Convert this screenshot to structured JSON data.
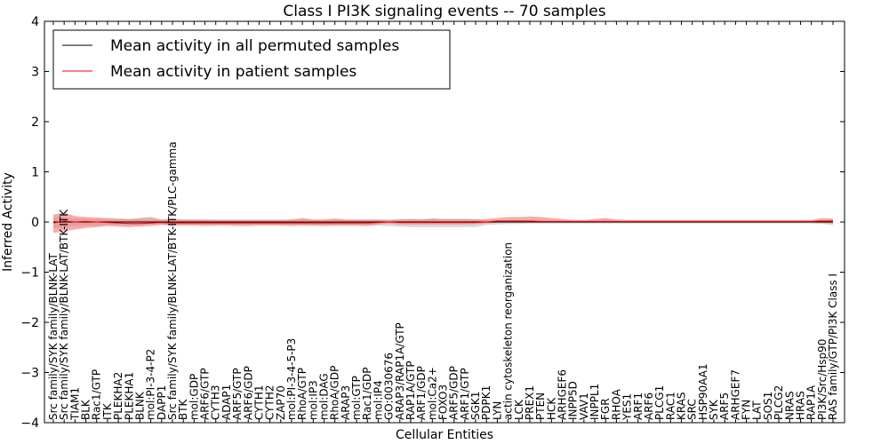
{
  "chart_data": {
    "type": "line",
    "title": "Class I PI3K signaling events -- 70 samples",
    "xlabel": "Cellular Entities",
    "ylabel": "Inferred Activity",
    "ylim": [
      -4,
      4
    ],
    "yticks": [
      -4,
      -3,
      -2,
      -1,
      0,
      1,
      2,
      3,
      4
    ],
    "grid": false,
    "legend_position": "top-left",
    "colors": {
      "permuted": "#000000",
      "patient": "#ff0000",
      "patient_band": "#f08080",
      "permuted_band": "#c8c8c8"
    },
    "categories": [
      "Src family/SYK family/BLNK-LAT",
      "Src family/SYK family/BLNK-LAT/BTK-ITK",
      "TIAM1",
      "BLK",
      "Rac1/GTP",
      "ITK",
      "PLEKHA2",
      "PLEKHA1",
      "BLNK",
      "mol:PI-3-4-P2",
      "DAPP1",
      "Src family/SYK family/BLNK-LAT/BTK-ITK/PLC-gamma",
      "BTK",
      "mol:GDP",
      "ARF6/GTP",
      "CYTH3",
      "ADAP1",
      "ARF5/GTP",
      "ARF6/GDP",
      "CYTH1",
      "CYTH2",
      "ZAP70",
      "mol:PI-3-4-5-P3",
      "RhoA/GTP",
      "mol:IP3",
      "mol:DAG",
      "RhoA/GDP",
      "ARAP3",
      "mol:GTP",
      "Rac1/GDP",
      "mol:IP4",
      "GO:0030676",
      "ARAP3/RAP1A/GTP",
      "RAP1A/GTP",
      "ARF1/GDP",
      "mol:Ca2+",
      "FOXO3",
      "ARF5/GDP",
      "ARF1/GTP",
      "SGK1",
      "PDPK1",
      "LYN",
      "actin cytoskeleton reorganization",
      "LCK",
      "PREX1",
      "PTEN",
      "HCK",
      "ARHGEF6",
      "INPP5D",
      "VAV1",
      "INPPL1",
      "FGR",
      "RHOA",
      "YES1",
      "ARF1",
      "ARF6",
      "PLCG1",
      "RAC1",
      "KRAS",
      "SRC",
      "HSP90AA1",
      "SYK",
      "ARF5",
      "ARHGEF7",
      "FYN",
      "LAT",
      "SOS1",
      "PLCG2",
      "NRAS",
      "HRAS",
      "RAP1A",
      "PI3K/Src/Hsp90",
      "RAS family/GTP/PI3K Class I"
    ],
    "series": [
      {
        "name": "Mean activity in all permuted samples",
        "values": [
          0.0,
          0.0,
          0.0,
          0.0,
          0.0,
          0.0,
          0.0,
          0.0,
          0.0,
          0.0,
          0.0,
          0.0,
          0.0,
          0.0,
          0.0,
          0.0,
          0.0,
          0.0,
          0.0,
          0.0,
          0.0,
          0.0,
          0.0,
          0.0,
          0.0,
          0.0,
          0.0,
          0.0,
          0.0,
          0.0,
          0.0,
          0.0,
          0.0,
          0.0,
          0.0,
          0.0,
          0.0,
          0.0,
          0.0,
          0.0,
          0.0,
          0.0,
          0.0,
          0.0,
          0.0,
          0.0,
          0.0,
          0.0,
          0.0,
          0.0,
          0.0,
          0.0,
          0.0,
          0.0,
          0.0,
          0.0,
          0.0,
          0.0,
          0.0,
          0.0,
          0.0,
          0.0,
          0.0,
          0.0,
          0.0,
          0.0,
          0.0,
          0.0,
          0.0,
          0.0,
          0.0,
          0.0,
          0.0
        ],
        "lower": [
          -0.12,
          -0.12,
          -0.08,
          -0.07,
          -0.07,
          -0.06,
          -0.06,
          -0.06,
          -0.06,
          -0.05,
          -0.05,
          -0.06,
          -0.06,
          -0.06,
          -0.06,
          -0.06,
          -0.06,
          -0.06,
          -0.06,
          -0.06,
          -0.06,
          -0.06,
          -0.06,
          -0.06,
          -0.07,
          -0.07,
          -0.07,
          -0.07,
          -0.07,
          -0.07,
          -0.07,
          -0.08,
          -0.09,
          -0.1,
          -0.1,
          -0.1,
          -0.1,
          -0.1,
          -0.1,
          -0.1,
          -0.06,
          -0.05,
          -0.04,
          -0.04,
          -0.03,
          -0.03,
          -0.03,
          -0.03,
          -0.03,
          -0.03,
          -0.03,
          -0.03,
          -0.03,
          -0.03,
          -0.03,
          -0.03,
          -0.03,
          -0.03,
          -0.03,
          -0.03,
          -0.03,
          -0.03,
          -0.03,
          -0.03,
          -0.03,
          -0.03,
          -0.03,
          -0.03,
          -0.03,
          -0.03,
          -0.03,
          -0.04,
          -0.06
        ],
        "upper": [
          0.1,
          0.1,
          0.07,
          0.06,
          0.06,
          0.05,
          0.05,
          0.05,
          0.05,
          0.05,
          0.05,
          0.05,
          0.05,
          0.05,
          0.05,
          0.05,
          0.05,
          0.05,
          0.05,
          0.05,
          0.05,
          0.05,
          0.05,
          0.05,
          0.05,
          0.05,
          0.05,
          0.05,
          0.05,
          0.05,
          0.05,
          0.05,
          0.06,
          0.06,
          0.06,
          0.06,
          0.06,
          0.06,
          0.06,
          0.06,
          0.04,
          0.03,
          0.03,
          0.03,
          0.02,
          0.02,
          0.02,
          0.02,
          0.02,
          0.02,
          0.02,
          0.02,
          0.02,
          0.02,
          0.02,
          0.02,
          0.02,
          0.02,
          0.02,
          0.02,
          0.02,
          0.02,
          0.02,
          0.02,
          0.02,
          0.02,
          0.02,
          0.02,
          0.02,
          0.02,
          0.02,
          0.03,
          0.04
        ]
      },
      {
        "name": "Mean activity in patient samples",
        "values": [
          -0.02,
          0.02,
          0.0,
          0.01,
          0.0,
          -0.01,
          -0.02,
          -0.03,
          -0.03,
          -0.02,
          -0.01,
          -0.02,
          -0.02,
          -0.02,
          -0.02,
          -0.02,
          -0.02,
          -0.02,
          -0.02,
          -0.02,
          -0.02,
          -0.02,
          -0.02,
          -0.02,
          -0.02,
          -0.02,
          -0.02,
          -0.02,
          -0.02,
          -0.02,
          -0.01,
          0.0,
          -0.01,
          -0.01,
          -0.01,
          -0.01,
          -0.01,
          -0.01,
          -0.01,
          -0.01,
          0.0,
          0.02,
          0.02,
          0.02,
          0.02,
          0.01,
          0.01,
          0.01,
          0.01,
          0.01,
          0.01,
          0.01,
          0.01,
          0.01,
          0.01,
          0.01,
          0.01,
          0.01,
          0.01,
          0.01,
          0.01,
          0.01,
          0.01,
          0.01,
          0.01,
          0.01,
          0.01,
          0.01,
          0.01,
          0.01,
          0.01,
          0.02,
          0.02
        ],
        "lower": [
          -0.22,
          -0.18,
          -0.15,
          -0.12,
          -0.1,
          -0.08,
          -0.09,
          -0.1,
          -0.09,
          -0.08,
          -0.06,
          -0.07,
          -0.07,
          -0.07,
          -0.08,
          -0.07,
          -0.07,
          -0.08,
          -0.08,
          -0.07,
          -0.07,
          -0.07,
          -0.08,
          -0.07,
          -0.07,
          -0.08,
          -0.07,
          -0.07,
          -0.07,
          -0.08,
          -0.05,
          -0.03,
          -0.05,
          -0.05,
          -0.05,
          -0.05,
          -0.05,
          -0.05,
          -0.05,
          -0.04,
          -0.03,
          -0.01,
          -0.01,
          -0.01,
          -0.01,
          -0.01,
          -0.01,
          -0.01,
          -0.01,
          -0.01,
          -0.01,
          -0.01,
          -0.01,
          -0.01,
          -0.01,
          -0.01,
          -0.01,
          -0.01,
          -0.01,
          -0.01,
          -0.01,
          -0.01,
          -0.01,
          -0.01,
          -0.01,
          -0.01,
          -0.01,
          -0.01,
          -0.01,
          -0.01,
          -0.01,
          -0.02,
          -0.03
        ],
        "upper": [
          0.15,
          0.18,
          0.12,
          0.1,
          0.09,
          0.08,
          0.07,
          0.06,
          0.08,
          0.1,
          0.05,
          0.07,
          0.05,
          0.05,
          0.05,
          0.04,
          0.04,
          0.04,
          0.04,
          0.04,
          0.04,
          0.04,
          0.05,
          0.08,
          0.05,
          0.05,
          0.07,
          0.05,
          0.05,
          0.05,
          0.05,
          0.04,
          0.05,
          0.06,
          0.05,
          0.07,
          0.06,
          0.06,
          0.06,
          0.05,
          0.06,
          0.08,
          0.1,
          0.1,
          0.11,
          0.1,
          0.08,
          0.06,
          0.04,
          0.04,
          0.06,
          0.08,
          0.05,
          0.04,
          0.04,
          0.04,
          0.04,
          0.04,
          0.04,
          0.04,
          0.04,
          0.04,
          0.04,
          0.04,
          0.04,
          0.04,
          0.04,
          0.04,
          0.04,
          0.04,
          0.04,
          0.08,
          0.07
        ]
      }
    ]
  }
}
